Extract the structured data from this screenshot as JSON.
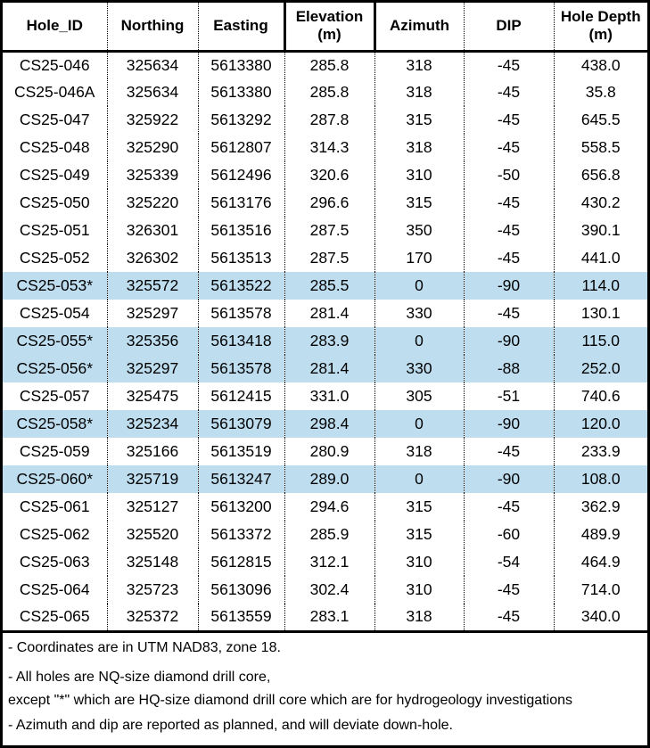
{
  "chart_data": {
    "type": "table",
    "columns": [
      {
        "id": "hole-id",
        "header_lines": [
          "Hole_ID"
        ]
      },
      {
        "id": "northing",
        "header_lines": [
          "Northing"
        ]
      },
      {
        "id": "easting",
        "header_lines": [
          "Easting"
        ]
      },
      {
        "id": "elevation",
        "header_lines": [
          "Elevation",
          "(m)"
        ]
      },
      {
        "id": "azimuth",
        "header_lines": [
          "Azimuth"
        ]
      },
      {
        "id": "dip",
        "header_lines": [
          "DIP"
        ]
      },
      {
        "id": "hole-depth",
        "header_lines": [
          "Hole Depth",
          "(m)"
        ]
      }
    ],
    "rows": [
      {
        "cells": [
          "CS25-046",
          "325634",
          "5613380",
          "285.8",
          "318",
          "-45",
          "438.0"
        ],
        "highlighted": false
      },
      {
        "cells": [
          "CS25-046A",
          "325634",
          "5613380",
          "285.8",
          "318",
          "-45",
          "35.8"
        ],
        "highlighted": false
      },
      {
        "cells": [
          "CS25-047",
          "325922",
          "5613292",
          "287.8",
          "315",
          "-45",
          "645.5"
        ],
        "highlighted": false
      },
      {
        "cells": [
          "CS25-048",
          "325290",
          "5612807",
          "314.3",
          "318",
          "-45",
          "558.5"
        ],
        "highlighted": false
      },
      {
        "cells": [
          "CS25-049",
          "325339",
          "5612496",
          "320.6",
          "310",
          "-50",
          "656.8"
        ],
        "highlighted": false
      },
      {
        "cells": [
          "CS25-050",
          "325220",
          "5613176",
          "296.6",
          "315",
          "-45",
          "430.2"
        ],
        "highlighted": false
      },
      {
        "cells": [
          "CS25-051",
          "326301",
          "5613516",
          "287.5",
          "350",
          "-45",
          "390.1"
        ],
        "highlighted": false
      },
      {
        "cells": [
          "CS25-052",
          "326302",
          "5613513",
          "287.5",
          "170",
          "-45",
          "441.0"
        ],
        "highlighted": false
      },
      {
        "cells": [
          "CS25-053*",
          "325572",
          "5613522",
          "285.5",
          "0",
          "-90",
          "114.0"
        ],
        "highlighted": true
      },
      {
        "cells": [
          "CS25-054",
          "325297",
          "5613578",
          "281.4",
          "330",
          "-45",
          "130.1"
        ],
        "highlighted": false
      },
      {
        "cells": [
          "CS25-055*",
          "325356",
          "5613418",
          "283.9",
          "0",
          "-90",
          "115.0"
        ],
        "highlighted": true
      },
      {
        "cells": [
          "CS25-056*",
          "325297",
          "5613578",
          "281.4",
          "330",
          "-88",
          "252.0"
        ],
        "highlighted": true
      },
      {
        "cells": [
          "CS25-057",
          "325475",
          "5612415",
          "331.0",
          "305",
          "-51",
          "740.6"
        ],
        "highlighted": false
      },
      {
        "cells": [
          "CS25-058*",
          "325234",
          "5613079",
          "298.4",
          "0",
          "-90",
          "120.0"
        ],
        "highlighted": true
      },
      {
        "cells": [
          "CS25-059",
          "325166",
          "5613519",
          "280.9",
          "318",
          "-45",
          "233.9"
        ],
        "highlighted": false
      },
      {
        "cells": [
          "CS25-060*",
          "325719",
          "5613247",
          "289.0",
          "0",
          "-90",
          "108.0"
        ],
        "highlighted": true
      },
      {
        "cells": [
          "CS25-061",
          "325127",
          "5613200",
          "294.6",
          "315",
          "-45",
          "362.9"
        ],
        "highlighted": false
      },
      {
        "cells": [
          "CS25-062",
          "325520",
          "5613372",
          "285.9",
          "315",
          "-60",
          "489.9"
        ],
        "highlighted": false
      },
      {
        "cells": [
          "CS25-063",
          "325148",
          "5612815",
          "312.1",
          "310",
          "-54",
          "464.9"
        ],
        "highlighted": false
      },
      {
        "cells": [
          "CS25-064",
          "325723",
          "5613096",
          "302.4",
          "310",
          "-45",
          "714.0"
        ],
        "highlighted": false
      },
      {
        "cells": [
          "CS25-065",
          "325372",
          "5613559",
          "283.1",
          "318",
          "-45",
          "340.0"
        ],
        "highlighted": false
      }
    ]
  },
  "notes": {
    "lines": [
      "- Coordinates are in UTM NAD83, zone 18.",
      "- All holes are NQ-size diamond drill core,",
      "except \"*\" which are HQ-size diamond drill core which are for hydrogeology investigations",
      "- Azimuth and dip are reported as planned, and will deviate down-hole."
    ]
  },
  "colors": {
    "highlight_row": "#BEDEF0",
    "border": "#000000",
    "background": "#FFFFFF",
    "text": "#000000"
  }
}
